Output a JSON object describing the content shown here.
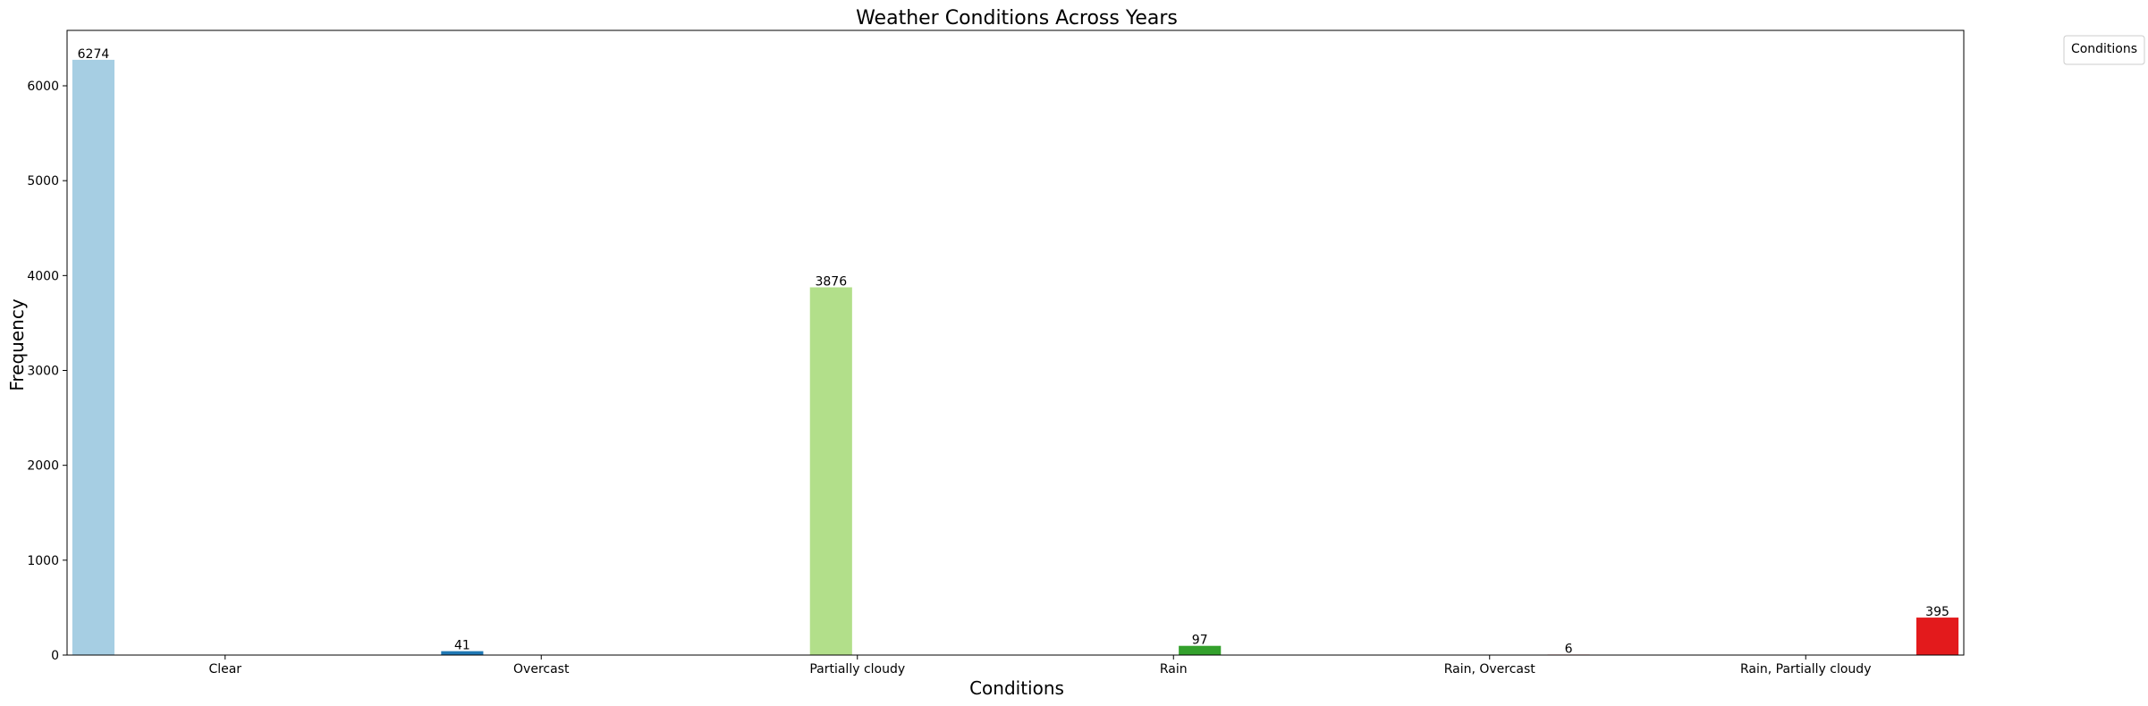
{
  "chart_data": {
    "type": "bar",
    "title": "Weather Conditions Across Years",
    "xlabel": "Conditions",
    "ylabel": "Frequency",
    "categories": [
      "Clear",
      "Overcast",
      "Partially cloudy",
      "Rain",
      "Rain, Overcast",
      "Rain, Partially cloudy"
    ],
    "values": [
      6274,
      41,
      3876,
      97,
      6,
      395
    ],
    "data_labels": [
      "6274",
      "41",
      "3876",
      "97",
      "6",
      "395"
    ],
    "colors": [
      "#a6cee3",
      "#1f78b4",
      "#b2df8a",
      "#33a02c",
      "#fb9a99",
      "#e31a1c"
    ],
    "ylim": [
      0,
      6584
    ],
    "yticks": [
      0,
      1000,
      2000,
      3000,
      4000,
      5000,
      6000
    ],
    "grid": false,
    "legend": {
      "title": "Conditions",
      "placement": "outside-top-right",
      "entries": []
    }
  }
}
